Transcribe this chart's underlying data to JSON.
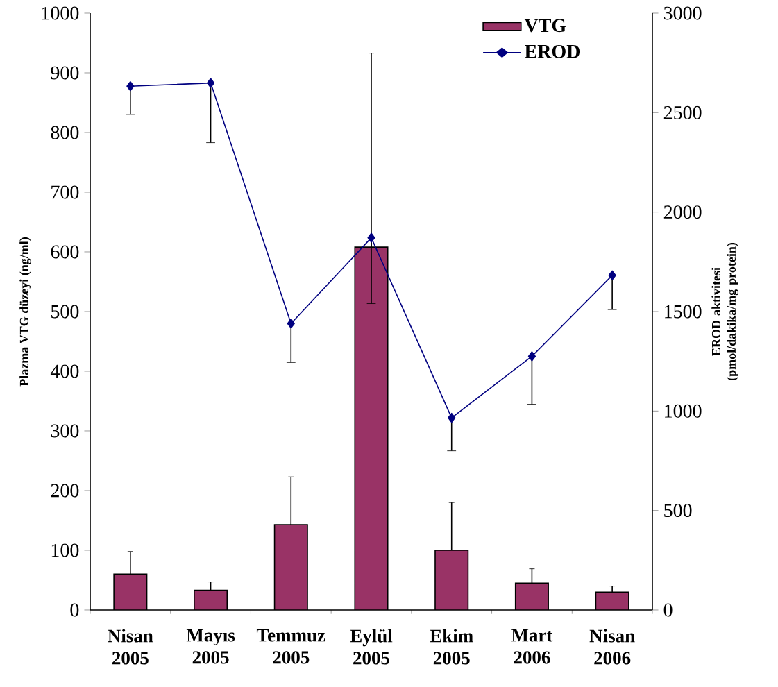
{
  "chart_data": {
    "type": "bar",
    "categories": [
      "Nisan 2005",
      "Mayıs 2005",
      "Temmuz 2005",
      "Eylül 2005",
      "Ekim 2005",
      "Mart 2006",
      "Nisan 2006"
    ],
    "ylabel": "Plazma VTG düzeyi (ng/ml)",
    "y2label": "EROD aktivitesi (pmol/dakika/mg protein)",
    "ylim": [
      0,
      1000
    ],
    "yticks": [
      0,
      100,
      200,
      300,
      400,
      500,
      600,
      700,
      800,
      900,
      1000
    ],
    "y2lim": [
      0,
      3000
    ],
    "y2ticks": [
      0,
      500,
      1000,
      1500,
      2000,
      2500,
      3000
    ],
    "legend": "top right",
    "series": [
      {
        "name": "VTG",
        "type": "bar",
        "color": "#993366",
        "values": [
          60,
          33,
          143,
          608,
          100,
          45,
          30
        ],
        "errors": [
          [
            60,
            98
          ],
          [
            33,
            47
          ],
          [
            143,
            223
          ],
          [
            608,
            933
          ],
          [
            100,
            180
          ],
          [
            45,
            69
          ],
          [
            30,
            40
          ]
        ]
      },
      {
        "name": "EROD",
        "type": "line",
        "axis": "y2",
        "color": "#000080",
        "marker": "diamond",
        "values": [
          2633,
          2649,
          1440,
          1871,
          966,
          1275,
          1682
        ],
        "errors": [
          [
            2491,
            2633
          ],
          [
            2349,
            2649
          ],
          [
            1244,
            1440
          ],
          [
            1540,
            1871
          ],
          [
            800,
            966
          ],
          [
            1034,
            1275
          ],
          [
            1510,
            1682
          ]
        ]
      }
    ]
  }
}
